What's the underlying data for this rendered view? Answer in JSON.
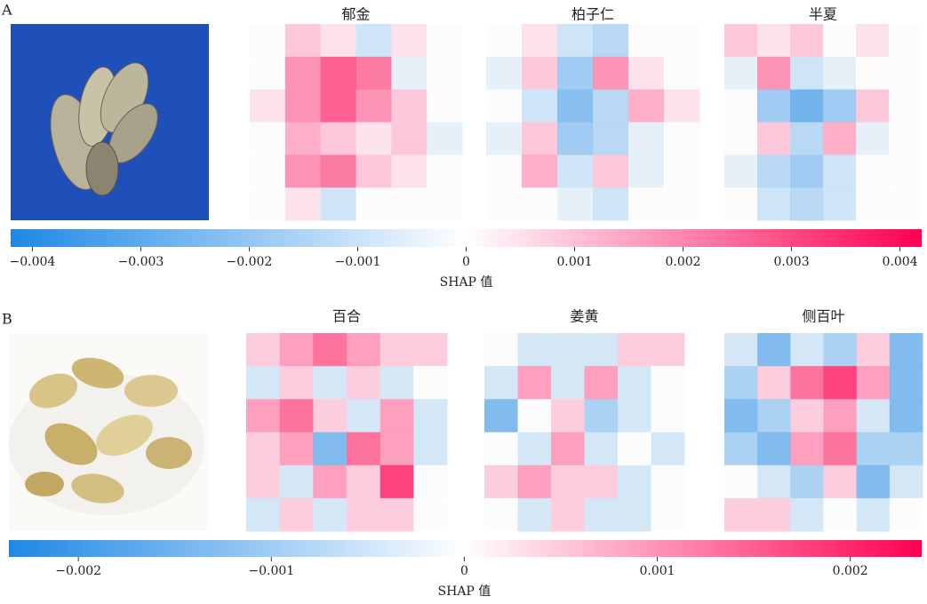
{
  "panels": [
    {
      "label": "A",
      "heatmaps": [
        {
          "title": "郁金",
          "cells": [
            [
              0,
              0.001,
              0.0005,
              -0.001,
              0.0005,
              0
            ],
            [
              0,
              0.002,
              0.003,
              0.0025,
              -0.0005,
              0
            ],
            [
              0.0005,
              0.002,
              0.003,
              0.002,
              0.001,
              0
            ],
            [
              0,
              0.0015,
              0.001,
              0.0005,
              0.001,
              -0.0005
            ],
            [
              0,
              0.002,
              0.0025,
              0.001,
              0.0005,
              0
            ],
            [
              0,
              0.0005,
              -0.001,
              0,
              0,
              0
            ]
          ]
        },
        {
          "title": "柏子仁",
          "cells": [
            [
              0,
              0.0005,
              -0.001,
              -0.0015,
              0,
              0
            ],
            [
              -0.0005,
              0.001,
              -0.002,
              0.002,
              0.0005,
              0
            ],
            [
              0,
              -0.001,
              -0.0025,
              -0.0015,
              0.0015,
              0.0005
            ],
            [
              -0.0005,
              0.001,
              -0.002,
              -0.0015,
              -0.0005,
              0
            ],
            [
              0,
              0.0015,
              -0.001,
              0.001,
              -0.0005,
              0
            ],
            [
              0,
              0,
              -0.0005,
              -0.001,
              0,
              0
            ]
          ]
        },
        {
          "title": "半夏",
          "cells": [
            [
              0.001,
              0.0005,
              0.001,
              0,
              0.0005,
              0
            ],
            [
              -0.0005,
              0.002,
              -0.001,
              -0.0005,
              0,
              0
            ],
            [
              0,
              -0.002,
              -0.003,
              -0.002,
              0.001,
              0
            ],
            [
              0,
              0.001,
              -0.0015,
              0.0015,
              -0.0005,
              0
            ],
            [
              -0.0005,
              -0.0015,
              -0.002,
              -0.001,
              0,
              0
            ],
            [
              0,
              -0.001,
              -0.0015,
              -0.001,
              0,
              0
            ]
          ]
        }
      ],
      "colorbar": {
        "range": [
          -0.0042,
          0.0042
        ],
        "ticks": [
          {
            "value": -0.004,
            "label": "−0.004"
          },
          {
            "value": -0.003,
            "label": "−0.003"
          },
          {
            "value": -0.002,
            "label": "−0.002"
          },
          {
            "value": -0.001,
            "label": "−0.001"
          },
          0,
          0.001,
          0.002,
          0.003,
          0.004
        ],
        "label": "SHAP 值"
      }
    },
    {
      "label": "B",
      "heatmaps": [
        {
          "title": "百合",
          "cells": [
            [
              0.0005,
              0.001,
              0.0015,
              0.001,
              0.0005,
              0.0005
            ],
            [
              -0.0005,
              0.0005,
              -0.0005,
              0.0005,
              -0.0005,
              0
            ],
            [
              0.001,
              0.0015,
              0.0005,
              -0.0005,
              0.001,
              -0.0005
            ],
            [
              0.0005,
              0.001,
              -0.0015,
              0.0015,
              0.001,
              -0.0005
            ],
            [
              0.0005,
              -0.0005,
              0.001,
              0.0005,
              0.002,
              0
            ],
            [
              -0.0005,
              0.0005,
              -0.0005,
              0.0005,
              0.0005,
              0
            ]
          ]
        },
        {
          "title": "姜黄",
          "cells": [
            [
              0,
              -0.0005,
              -0.0005,
              -0.0005,
              0.0005,
              0.0005
            ],
            [
              -0.0005,
              0.001,
              -0.0005,
              0.001,
              -0.0005,
              0
            ],
            [
              -0.0015,
              0,
              0.0005,
              -0.001,
              -0.0005,
              0
            ],
            [
              0,
              -0.0005,
              0.001,
              -0.0005,
              0,
              -0.0005
            ],
            [
              0.0005,
              0.001,
              0.0005,
              0.0005,
              -0.0005,
              0
            ],
            [
              0,
              -0.0005,
              0.0005,
              -0.0005,
              -0.0005,
              0
            ]
          ]
        },
        {
          "title": "侧百叶",
          "cells": [
            [
              -0.0005,
              -0.0015,
              -0.0005,
              -0.001,
              0.0005,
              -0.0015
            ],
            [
              -0.001,
              0.0005,
              0.0015,
              0.002,
              0.001,
              -0.0015
            ],
            [
              -0.0015,
              -0.001,
              0.0005,
              0.001,
              -0.0005,
              -0.0015
            ],
            [
              -0.001,
              -0.0015,
              0.001,
              0.0015,
              -0.001,
              -0.001
            ],
            [
              0,
              -0.0005,
              -0.001,
              0.0005,
              -0.0015,
              -0.0005
            ],
            [
              0.0005,
              0.0005,
              -0.0005,
              0,
              -0.0005,
              0
            ]
          ]
        }
      ],
      "colorbar": {
        "range": [
          -0.00236,
          0.00237
        ],
        "ticks": [
          {
            "value": -0.002,
            "label": "−0.002"
          },
          {
            "value": -0.001,
            "label": "−0.001"
          },
          0,
          0.001,
          0.002
        ],
        "label": "SHAP 值"
      }
    }
  ],
  "colors": {
    "low": "#1e88e5",
    "mid": "#ffffff",
    "high": "#ff0051"
  }
}
